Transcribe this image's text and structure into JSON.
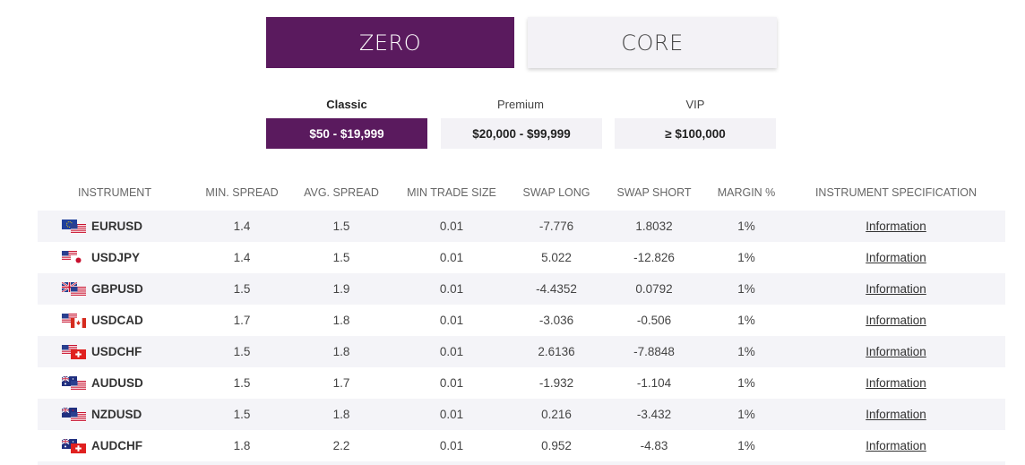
{
  "account_types": [
    {
      "label": "ZERO",
      "active": true
    },
    {
      "label": "CORE",
      "active": false
    }
  ],
  "tiers": [
    {
      "name": "Classic",
      "range": "$50 - $19,999",
      "active": true
    },
    {
      "name": "Premium",
      "range": "$20,000 - $99,999",
      "active": false
    },
    {
      "name": "VIP",
      "range": "≥ $100,000",
      "active": false
    }
  ],
  "table": {
    "headers": [
      "INSTRUMENT",
      "MIN. SPREAD",
      "AVG. SPREAD",
      "MIN TRADE SIZE",
      "SWAP LONG",
      "SWAP SHORT",
      "MARGIN %",
      "INSTRUMENT SPECIFICATION"
    ],
    "rows": [
      {
        "instrument": "EURUSD",
        "flags": [
          "eu",
          "us"
        ],
        "min_spread": "1.4",
        "avg_spread": "1.5",
        "min_trade": "0.01",
        "swap_long": "-7.776",
        "swap_short": "1.8032",
        "margin": "1%",
        "spec": "Information"
      },
      {
        "instrument": "USDJPY",
        "flags": [
          "us",
          "jp"
        ],
        "min_spread": "1.4",
        "avg_spread": "1.5",
        "min_trade": "0.01",
        "swap_long": "5.022",
        "swap_short": "-12.826",
        "margin": "1%",
        "spec": "Information"
      },
      {
        "instrument": "GBPUSD",
        "flags": [
          "gb",
          "us"
        ],
        "min_spread": "1.5",
        "avg_spread": "1.9",
        "min_trade": "0.01",
        "swap_long": "-4.4352",
        "swap_short": "0.0792",
        "margin": "1%",
        "spec": "Information"
      },
      {
        "instrument": "USDCAD",
        "flags": [
          "us",
          "ca"
        ],
        "min_spread": "1.7",
        "avg_spread": "1.8",
        "min_trade": "0.01",
        "swap_long": "-3.036",
        "swap_short": "-0.506",
        "margin": "1%",
        "spec": "Information"
      },
      {
        "instrument": "USDCHF",
        "flags": [
          "us",
          "ch"
        ],
        "min_spread": "1.5",
        "avg_spread": "1.8",
        "min_trade": "0.01",
        "swap_long": "2.6136",
        "swap_short": "-7.8848",
        "margin": "1%",
        "spec": "Information"
      },
      {
        "instrument": "AUDUSD",
        "flags": [
          "au",
          "us"
        ],
        "min_spread": "1.5",
        "avg_spread": "1.7",
        "min_trade": "0.01",
        "swap_long": "-1.932",
        "swap_short": "-1.104",
        "margin": "1%",
        "spec": "Information"
      },
      {
        "instrument": "NZDUSD",
        "flags": [
          "nz",
          "us"
        ],
        "min_spread": "1.5",
        "avg_spread": "1.8",
        "min_trade": "0.01",
        "swap_long": "0.216",
        "swap_short": "-3.432",
        "margin": "1%",
        "spec": "Information"
      },
      {
        "instrument": "AUDCHF",
        "flags": [
          "au",
          "ch"
        ],
        "min_spread": "1.8",
        "avg_spread": "2.2",
        "min_trade": "0.01",
        "swap_long": "0.952",
        "swap_short": "-4.83",
        "margin": "1%",
        "spec": "Information"
      }
    ]
  },
  "colors": {
    "accent": "#5a1a5e",
    "row_shade": "#f4f4f8",
    "button_bg": "#f3f2f6"
  }
}
